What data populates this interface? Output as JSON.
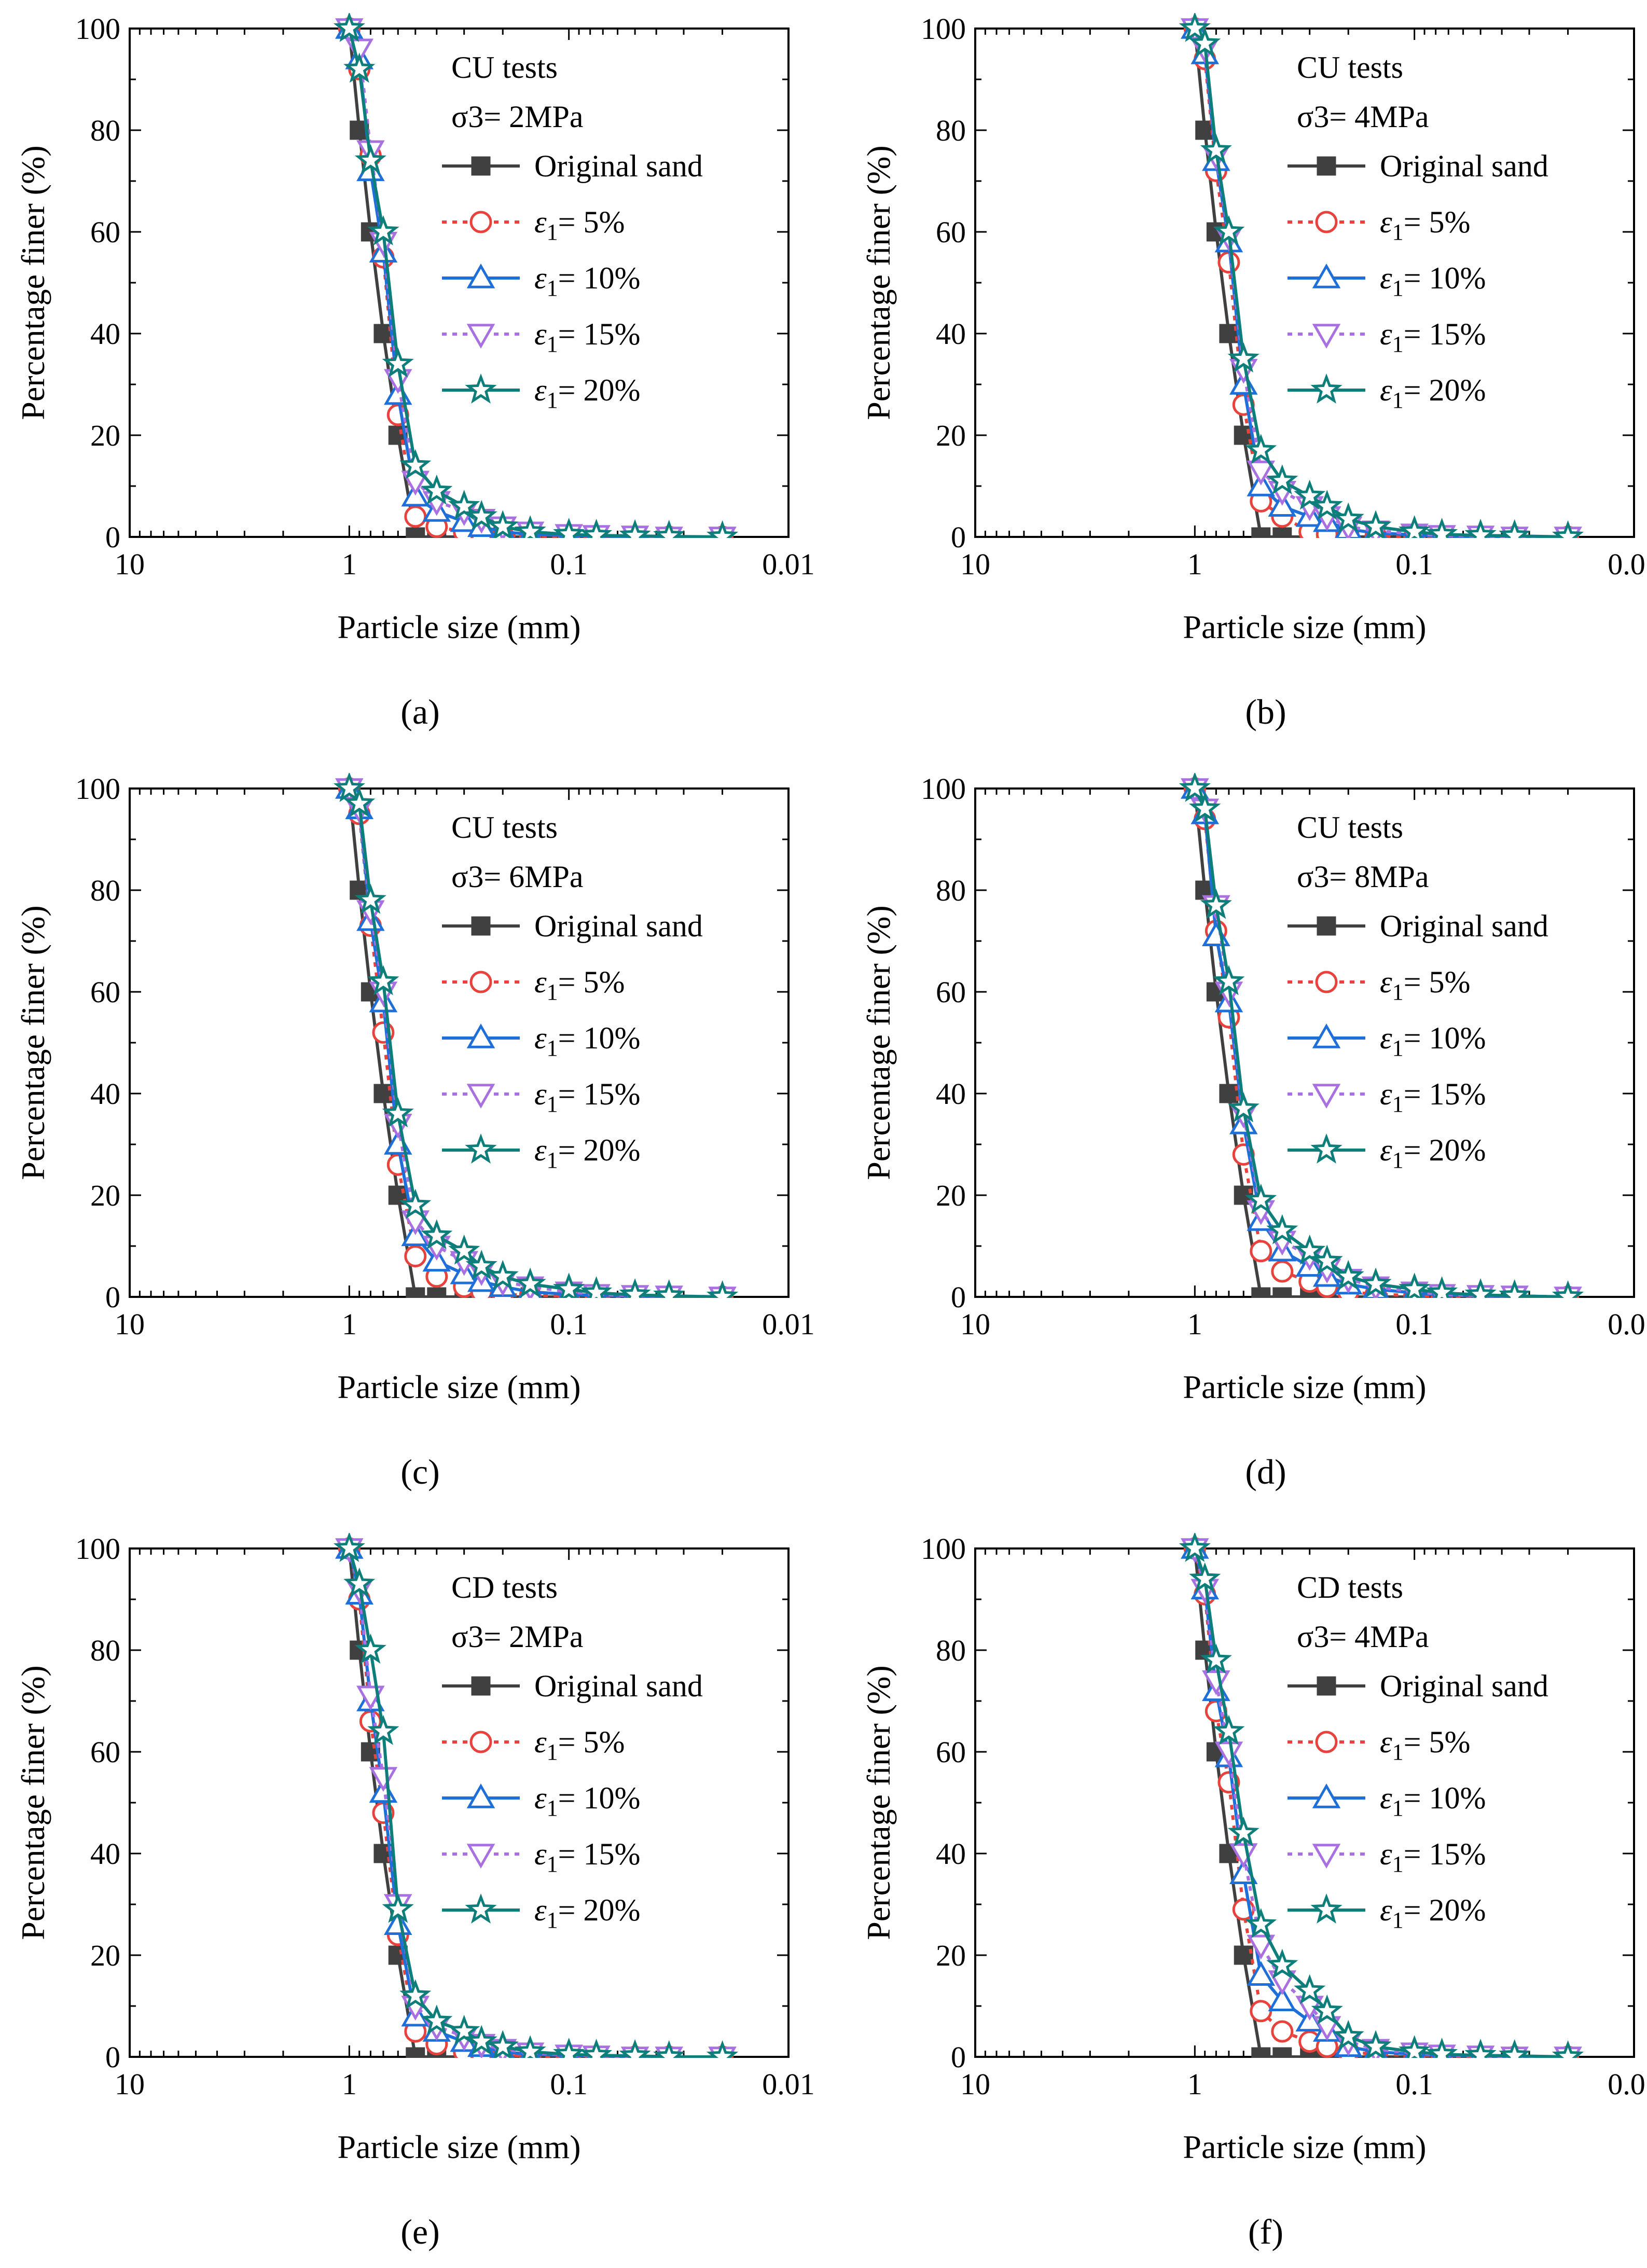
{
  "figure": {
    "xlabel": "Particle size (mm)",
    "ylabel": "Percentage finer (%)",
    "xticks": [
      10,
      1,
      0.1,
      0.01
    ],
    "xtick_labels": [
      "10",
      "1",
      "0.1",
      "0.01"
    ],
    "yticks": [
      0,
      20,
      40,
      60,
      80,
      100
    ],
    "ytick_labels": [
      "0",
      "20",
      "40",
      "60",
      "80",
      "100"
    ],
    "styles": [
      {
        "key": "original",
        "color": "#404040",
        "marker": "square",
        "dash": "solid"
      },
      {
        "key": "e5",
        "color": "#e8423c",
        "marker": "circle",
        "dash": "dotted"
      },
      {
        "key": "e10",
        "color": "#1f6fd9",
        "marker": "triangle-up",
        "dash": "solid"
      },
      {
        "key": "e15",
        "color": "#a870e0",
        "marker": "triangle-down",
        "dash": "dotted"
      },
      {
        "key": "e20",
        "color": "#0d7e7a",
        "marker": "star",
        "dash": "solid"
      }
    ]
  },
  "chart_data": [
    {
      "type": "line",
      "panel_label": "(a)",
      "legend_title_1": "CU tests",
      "legend_title_2": "σ3= 2MPa",
      "title": "CU tests, σ3 = 2MPa",
      "xlabel": "Particle size (mm)",
      "ylabel": "Percentage finer (%)",
      "xscale": "log-reversed",
      "xlim": [
        10,
        0.01
      ],
      "ylim": [
        0,
        100
      ],
      "x": [
        1,
        0.9,
        0.8,
        0.7,
        0.6,
        0.5,
        0.4,
        0.3,
        0.25,
        0.2,
        0.15,
        0.1,
        0.075,
        0.05,
        0.035,
        0.02
      ],
      "series": [
        {
          "name": "Original sand",
          "legend_main": "Original sand",
          "legend_sub": "",
          "legend_tail": "",
          "values": [
            100,
            80,
            60,
            40,
            20,
            0,
            0,
            0,
            0,
            0,
            0,
            0,
            0,
            0,
            0,
            0
          ]
        },
        {
          "name": "ε1= 5%",
          "legend_main": "ε",
          "legend_sub": "1",
          "legend_tail": "= 5%",
          "values": [
            100,
            92,
            75,
            55,
            24,
            4,
            2,
            1,
            0.5,
            0.3,
            0.2,
            0,
            0,
            0,
            0,
            0
          ]
        },
        {
          "name": "ε1= 10%",
          "legend_main": "ε",
          "legend_sub": "1",
          "legend_tail": "= 10%",
          "values": [
            100,
            94,
            72,
            56,
            28,
            8,
            5,
            3,
            2,
            1,
            0.5,
            0.3,
            0.2,
            0,
            0,
            0
          ]
        },
        {
          "name": "ε1= 15%",
          "legend_main": "ε",
          "legend_sub": "1",
          "legend_tail": "= 15%",
          "values": [
            100,
            96,
            76,
            58,
            31,
            11,
            7,
            5,
            3.5,
            2,
            1,
            0.5,
            0.3,
            0.2,
            0,
            0
          ]
        },
        {
          "name": "ε1= 20%",
          "legend_main": "ε",
          "legend_sub": "1",
          "legend_tail": "= 20%",
          "values": [
            100,
            92,
            74,
            60,
            34,
            14,
            9,
            6,
            4,
            2,
            1,
            0.5,
            0.3,
            0.2,
            0.1,
            0
          ]
        }
      ]
    },
    {
      "type": "line",
      "panel_label": "(b)",
      "legend_title_1": "CU tests",
      "legend_title_2": "σ3= 4MPa",
      "title": "CU tests, σ3 = 4MPa",
      "xlabel": "Particle size (mm)",
      "ylabel": "Percentage finer (%)",
      "xscale": "log-reversed",
      "xlim": [
        10,
        0.01
      ],
      "ylim": [
        0,
        100
      ],
      "x": [
        1,
        0.9,
        0.8,
        0.7,
        0.6,
        0.5,
        0.4,
        0.3,
        0.25,
        0.2,
        0.15,
        0.1,
        0.075,
        0.05,
        0.035,
        0.02
      ],
      "series": [
        {
          "name": "Original sand",
          "legend_main": "Original sand",
          "legend_sub": "",
          "legend_tail": "",
          "values": [
            100,
            80,
            60,
            40,
            20,
            0,
            0,
            0,
            0,
            0,
            0,
            0,
            0,
            0,
            0,
            0
          ]
        },
        {
          "name": "ε1= 5%",
          "legend_main": "ε",
          "legend_sub": "1",
          "legend_tail": "= 5%",
          "values": [
            100,
            94,
            72,
            54,
            26,
            7,
            4,
            1,
            0.5,
            0.3,
            0.2,
            0,
            0,
            0,
            0,
            0
          ]
        },
        {
          "name": "ε1= 10%",
          "legend_main": "ε",
          "legend_sub": "1",
          "legend_tail": "= 10%",
          "values": [
            100,
            95,
            74,
            58,
            30,
            10,
            6,
            4,
            3,
            1.5,
            0.8,
            0.4,
            0.2,
            0,
            0,
            0
          ]
        },
        {
          "name": "ε1= 15%",
          "legend_main": "ε",
          "legend_sub": "1",
          "legend_tail": "= 15%",
          "values": [
            100,
            96,
            75,
            59,
            33,
            13,
            9,
            6,
            4,
            2,
            1.2,
            0.6,
            0.3,
            0.2,
            0,
            0
          ]
        },
        {
          "name": "ε1= 20%",
          "legend_main": "ε",
          "legend_sub": "1",
          "legend_tail": "= 20%",
          "values": [
            100,
            97,
            76,
            60,
            35,
            17,
            11,
            8,
            6,
            3.5,
            2,
            1,
            0.5,
            0.3,
            0.2,
            0
          ]
        }
      ]
    },
    {
      "type": "line",
      "panel_label": "(c)",
      "legend_title_1": "CU tests",
      "legend_title_2": "σ3= 6MPa",
      "title": "CU tests, σ3 = 6MPa",
      "xlabel": "Particle size (mm)",
      "ylabel": "Percentage finer (%)",
      "xscale": "log-reversed",
      "xlim": [
        10,
        0.01
      ],
      "ylim": [
        0,
        100
      ],
      "x": [
        1,
        0.9,
        0.8,
        0.7,
        0.6,
        0.5,
        0.4,
        0.3,
        0.25,
        0.2,
        0.15,
        0.1,
        0.075,
        0.05,
        0.035,
        0.02
      ],
      "series": [
        {
          "name": "Original sand",
          "legend_main": "Original sand",
          "legend_sub": "",
          "legend_tail": "",
          "values": [
            100,
            80,
            60,
            40,
            20,
            0,
            0,
            0,
            0,
            0,
            0,
            0,
            0,
            0,
            0,
            0
          ]
        },
        {
          "name": "ε1= 5%",
          "legend_main": "ε",
          "legend_sub": "1",
          "legend_tail": "= 5%",
          "values": [
            100,
            95,
            73,
            52,
            26,
            8,
            4,
            2,
            1,
            0.5,
            0.3,
            0.2,
            0,
            0,
            0,
            0
          ]
        },
        {
          "name": "ε1= 10%",
          "legend_main": "ε",
          "legend_sub": "1",
          "legend_tail": "= 10%",
          "values": [
            100,
            96,
            74,
            58,
            30,
            12,
            7,
            4.5,
            3,
            2,
            1,
            0.5,
            0.3,
            0.2,
            0,
            0
          ]
        },
        {
          "name": "ε1= 15%",
          "legend_main": "ε",
          "legend_sub": "1",
          "legend_tail": "= 15%",
          "values": [
            100,
            96,
            76,
            60,
            34,
            15,
            10,
            7,
            5,
            3,
            2,
            1,
            0.5,
            0.3,
            0.2,
            0
          ]
        },
        {
          "name": "ε1= 20%",
          "legend_main": "ε",
          "legend_sub": "1",
          "legend_tail": "= 20%",
          "values": [
            100,
            97,
            78,
            62,
            36,
            18,
            12,
            9,
            6,
            4,
            2.5,
            1.5,
            0.8,
            0.4,
            0.2,
            0
          ]
        }
      ]
    },
    {
      "type": "line",
      "panel_label": "(d)",
      "legend_title_1": "CU tests",
      "legend_title_2": "σ3= 8MPa",
      "title": "CU tests, σ3 = 8MPa",
      "xlabel": "Particle size (mm)",
      "ylabel": "Percentage finer (%)",
      "xscale": "log-reversed",
      "xlim": [
        10,
        0.01
      ],
      "ylim": [
        0,
        100
      ],
      "x": [
        1,
        0.9,
        0.8,
        0.7,
        0.6,
        0.5,
        0.4,
        0.3,
        0.25,
        0.2,
        0.15,
        0.1,
        0.075,
        0.05,
        0.035,
        0.02
      ],
      "series": [
        {
          "name": "Original sand",
          "legend_main": "Original sand",
          "legend_sub": "",
          "legend_tail": "",
          "values": [
            100,
            80,
            60,
            40,
            20,
            0,
            0,
            0,
            0,
            0,
            0,
            0,
            0,
            0,
            0,
            0
          ]
        },
        {
          "name": "ε1= 5%",
          "legend_main": "ε",
          "legend_sub": "1",
          "legend_tail": "= 5%",
          "values": [
            100,
            94,
            72,
            55,
            28,
            9,
            5,
            3,
            2,
            1,
            0.5,
            0.3,
            0,
            0,
            0,
            0
          ]
        },
        {
          "name": "ε1= 10%",
          "legend_main": "ε",
          "legend_sub": "1",
          "legend_tail": "= 10%",
          "values": [
            100,
            95,
            71,
            58,
            34,
            15,
            9,
            6,
            4,
            2.5,
            1.5,
            0.8,
            0.4,
            0.2,
            0,
            0
          ]
        },
        {
          "name": "ε1= 15%",
          "legend_main": "ε",
          "legend_sub": "1",
          "legend_tail": "= 15%",
          "values": [
            100,
            96,
            77,
            60,
            36,
            17,
            11,
            8,
            5.5,
            3.5,
            2,
            1,
            0.5,
            0.3,
            0.2,
            0
          ]
        },
        {
          "name": "ε1= 20%",
          "legend_main": "ε",
          "legend_sub": "1",
          "legend_tail": "= 20%",
          "values": [
            100,
            96,
            77,
            62,
            37,
            19,
            13,
            9,
            7,
            4,
            2.5,
            1.5,
            0.8,
            0.4,
            0.2,
            0
          ]
        }
      ]
    },
    {
      "type": "line",
      "panel_label": "(e)",
      "legend_title_1": "CD tests",
      "legend_title_2": "σ3= 2MPa",
      "title": "CD tests, σ3 = 2MPa",
      "xlabel": "Particle size (mm)",
      "ylabel": "Percentage finer (%)",
      "xscale": "log-reversed",
      "xlim": [
        10,
        0.01
      ],
      "ylim": [
        0,
        100
      ],
      "x": [
        1,
        0.9,
        0.8,
        0.7,
        0.6,
        0.5,
        0.4,
        0.3,
        0.25,
        0.2,
        0.15,
        0.1,
        0.075,
        0.05,
        0.035,
        0.02
      ],
      "series": [
        {
          "name": "Original sand",
          "legend_main": "Original sand",
          "legend_sub": "",
          "legend_tail": "",
          "values": [
            100,
            80,
            60,
            40,
            20,
            0,
            0,
            0,
            0,
            0,
            0,
            0,
            0,
            0,
            0,
            0
          ]
        },
        {
          "name": "ε1= 5%",
          "legend_main": "ε",
          "legend_sub": "1",
          "legend_tail": "= 5%",
          "values": [
            100,
            90,
            66,
            48,
            24,
            5,
            2.5,
            1,
            0.5,
            0.3,
            0.2,
            0,
            0,
            0,
            0,
            0
          ]
        },
        {
          "name": "ε1= 10%",
          "legend_main": "ε",
          "legend_sub": "1",
          "legend_tail": "= 10%",
          "values": [
            100,
            91,
            70,
            52,
            26,
            8,
            5,
            3,
            2,
            1,
            0.5,
            0.3,
            0.2,
            0,
            0,
            0
          ]
        },
        {
          "name": "ε1= 15%",
          "legend_main": "ε",
          "legend_sub": "1",
          "legend_tail": "= 15%",
          "values": [
            100,
            92,
            71,
            55,
            30,
            10,
            6,
            4,
            2.5,
            1.5,
            0.8,
            0.4,
            0.2,
            0,
            0,
            0
          ]
        },
        {
          "name": "ε1= 20%",
          "legend_main": "ε",
          "legend_sub": "1",
          "legend_tail": "= 20%",
          "values": [
            100,
            93,
            80,
            64,
            29,
            12,
            7,
            5,
            3,
            2,
            1,
            0.5,
            0.3,
            0.2,
            0,
            0
          ]
        }
      ]
    },
    {
      "type": "line",
      "panel_label": "(f)",
      "legend_title_1": "CD tests",
      "legend_title_2": "σ3= 4MPa",
      "title": "CD tests, σ3 = 4MPa",
      "xlabel": "Particle size (mm)",
      "ylabel": "Percentage finer (%)",
      "xscale": "log-reversed",
      "xlim": [
        10,
        0.01
      ],
      "ylim": [
        0,
        100
      ],
      "x": [
        1,
        0.9,
        0.8,
        0.7,
        0.6,
        0.5,
        0.4,
        0.3,
        0.25,
        0.2,
        0.15,
        0.1,
        0.075,
        0.05,
        0.035,
        0.02
      ],
      "series": [
        {
          "name": "Original sand",
          "legend_main": "Original sand",
          "legend_sub": "",
          "legend_tail": "",
          "values": [
            100,
            80,
            60,
            40,
            20,
            0,
            0,
            0,
            0,
            0,
            0,
            0,
            0,
            0,
            0,
            0
          ]
        },
        {
          "name": "ε1= 5%",
          "legend_main": "ε",
          "legend_sub": "1",
          "legend_tail": "= 5%",
          "values": [
            100,
            91,
            68,
            54,
            29,
            9,
            5,
            3,
            2,
            1,
            0.5,
            0.3,
            0.2,
            0,
            0,
            0
          ]
        },
        {
          "name": "ε1= 10%",
          "legend_main": "ε",
          "legend_sub": "1",
          "legend_tail": "= 10%",
          "values": [
            100,
            92,
            72,
            59,
            36,
            16,
            11,
            7,
            5,
            2,
            1,
            0.5,
            0.3,
            0.2,
            0,
            0
          ]
        },
        {
          "name": "ε1= 15%",
          "legend_main": "ε",
          "legend_sub": "1",
          "legend_tail": "= 15%",
          "values": [
            100,
            92,
            74,
            60,
            40,
            22,
            15,
            10,
            6,
            3,
            1.5,
            0.8,
            0.4,
            0.2,
            0,
            0
          ]
        },
        {
          "name": "ε1= 20%",
          "legend_main": "ε",
          "legend_sub": "1",
          "legend_tail": "= 20%",
          "values": [
            100,
            94,
            78,
            64,
            44,
            26,
            18,
            13,
            9,
            4,
            2,
            1,
            0.5,
            0.3,
            0.2,
            0
          ]
        }
      ]
    }
  ]
}
